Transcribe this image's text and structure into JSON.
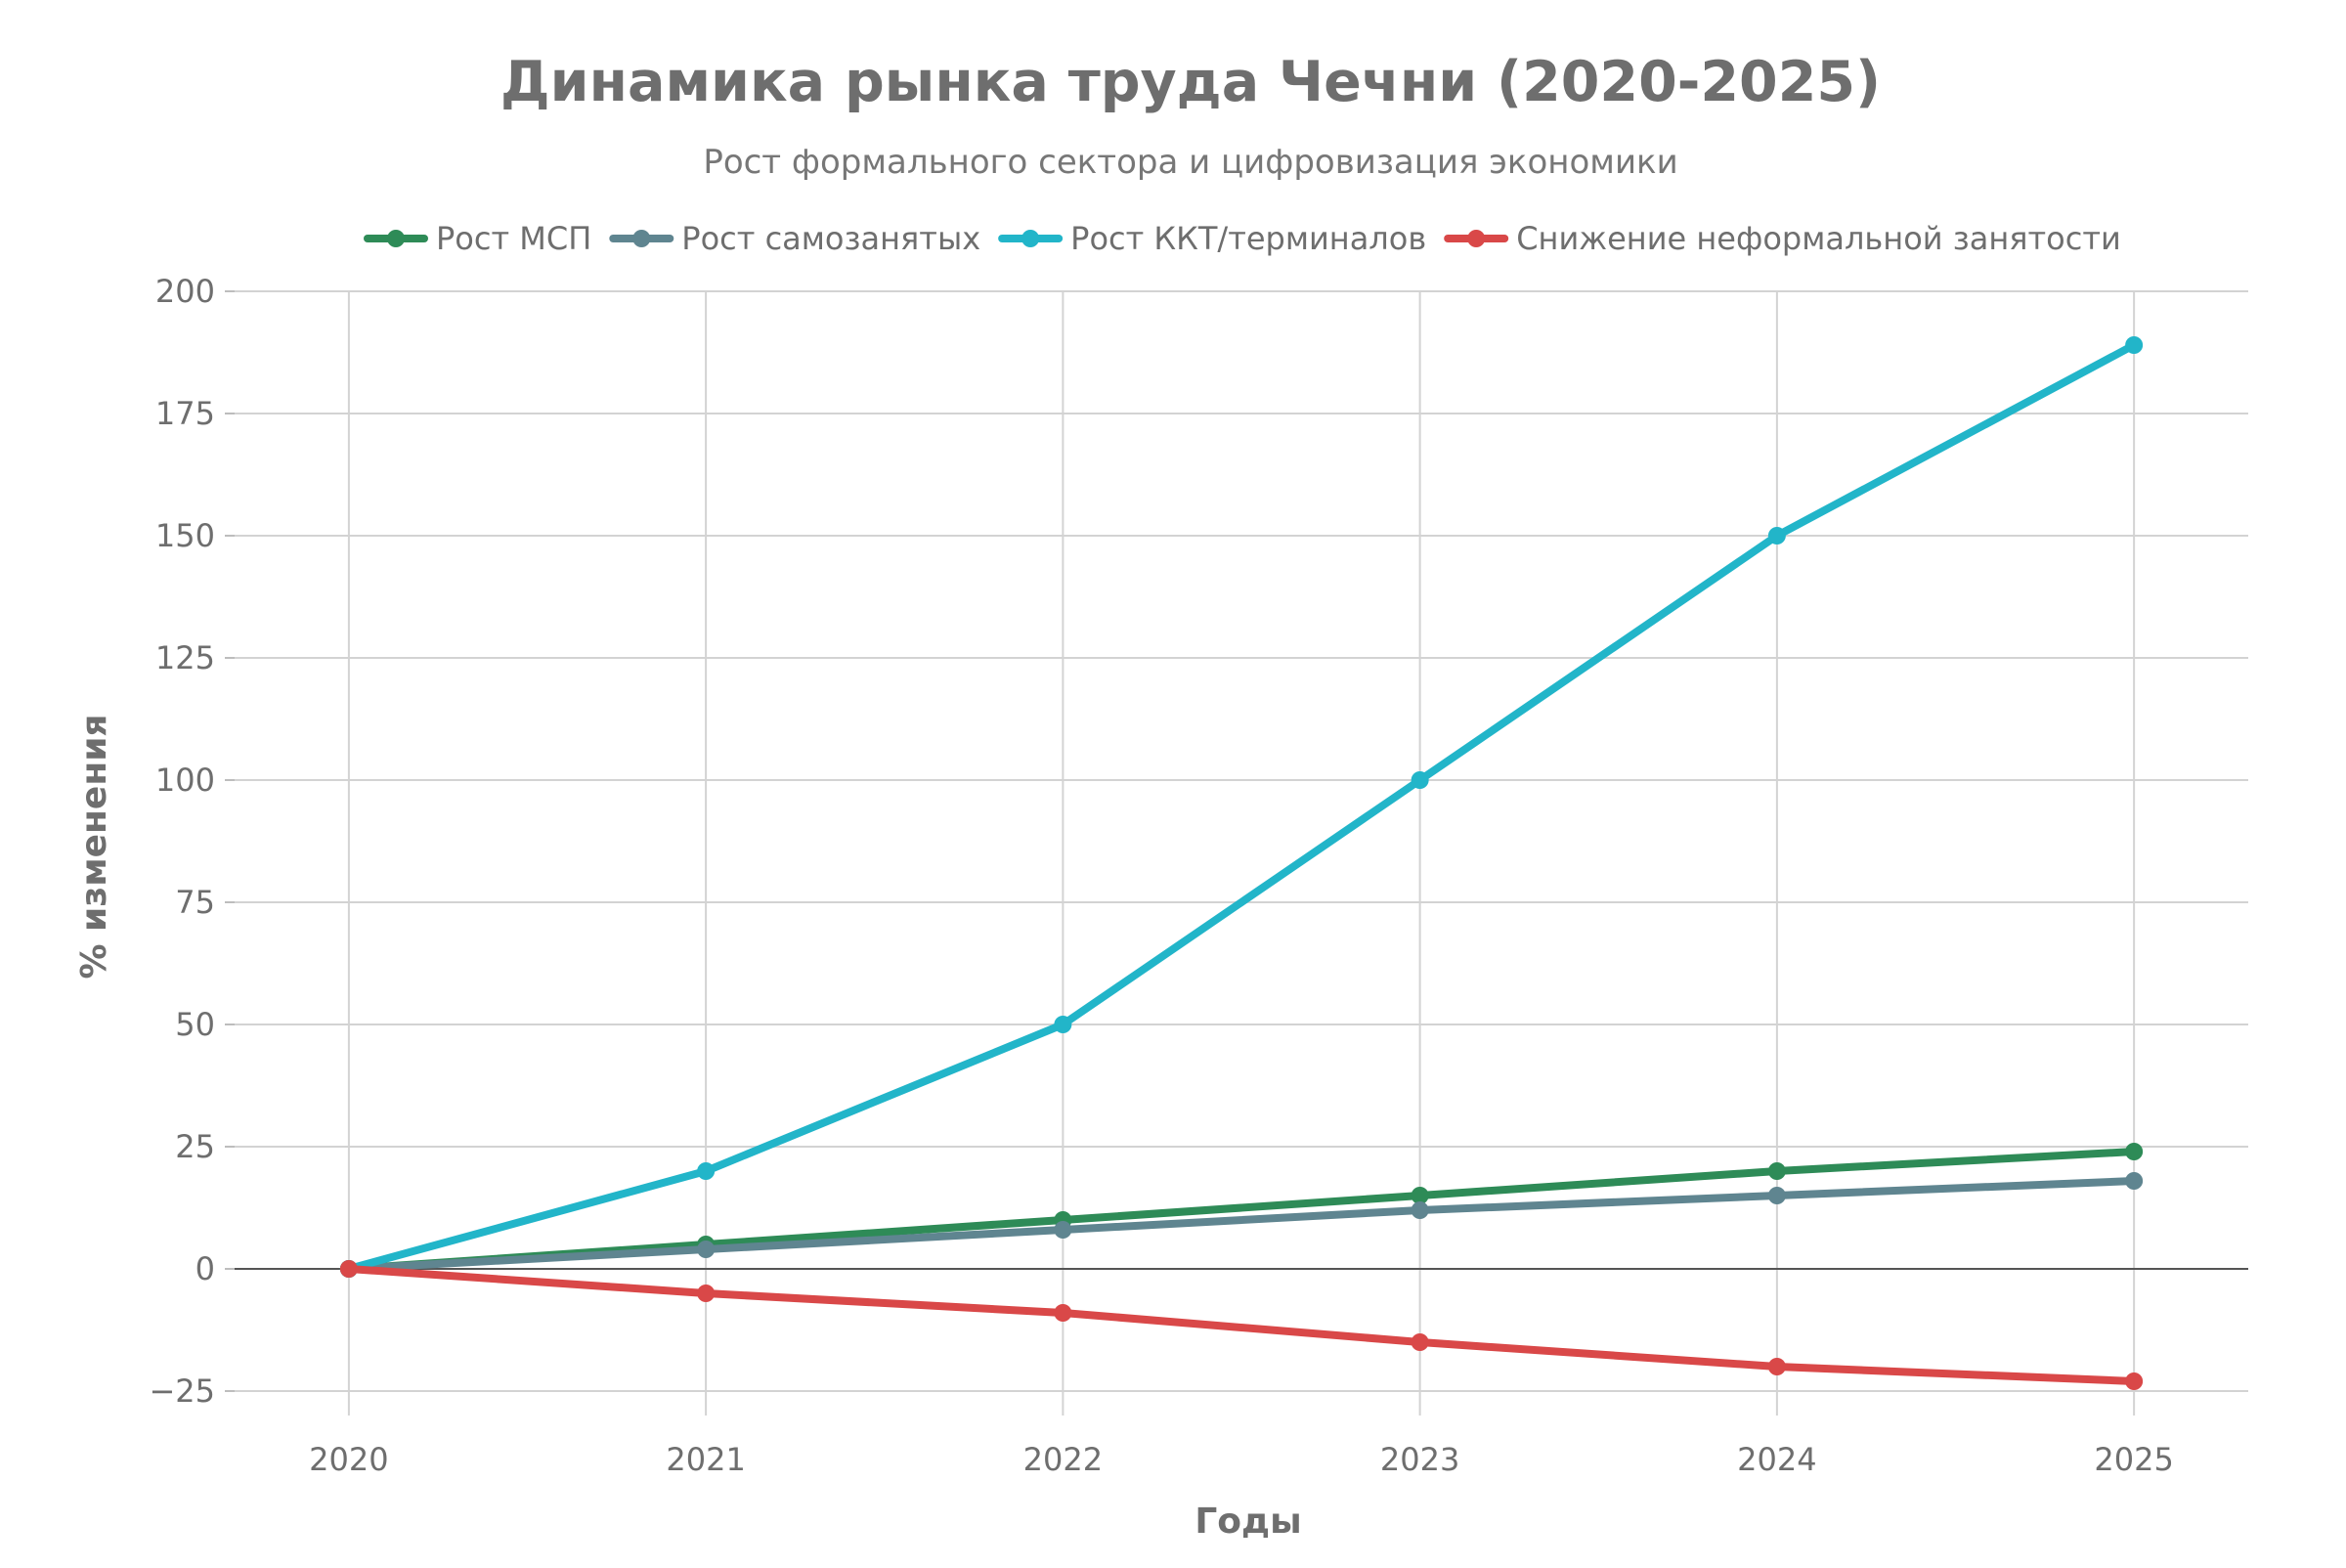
{
  "chart_data": {
    "type": "line",
    "title": "Динамика рынка труда Чечни (2020-2025)",
    "subtitle": "Рост формального сектора и цифровизация экономики",
    "xlabel": "Годы",
    "ylabel": "% изменения",
    "x": [
      2020,
      2021,
      2022,
      2023,
      2024,
      2025
    ],
    "ylim": [
      -30,
      200
    ],
    "yticks": [
      -25,
      0,
      25,
      50,
      75,
      100,
      125,
      150,
      175,
      200
    ],
    "ytick_labels": [
      "−25",
      "0",
      "25",
      "50",
      "75",
      "100",
      "125",
      "150",
      "175",
      "200"
    ],
    "grid": true,
    "legend_position": "top",
    "series": [
      {
        "name": "Рост МСП",
        "color": "#2e8b57",
        "values": [
          0,
          5,
          10,
          15,
          20,
          24
        ]
      },
      {
        "name": "Рост самозанятых",
        "color": "#5f8590",
        "values": [
          0,
          4,
          8,
          12,
          15,
          18
        ]
      },
      {
        "name": "Рост ККТ/терминалов",
        "color": "#22b5c9",
        "values": [
          0,
          20,
          50,
          100,
          150,
          189
        ]
      },
      {
        "name": "Снижение неформальной занятости",
        "color": "#d94848",
        "values": [
          0,
          -5,
          -9,
          -15,
          -20,
          -23
        ]
      }
    ]
  }
}
